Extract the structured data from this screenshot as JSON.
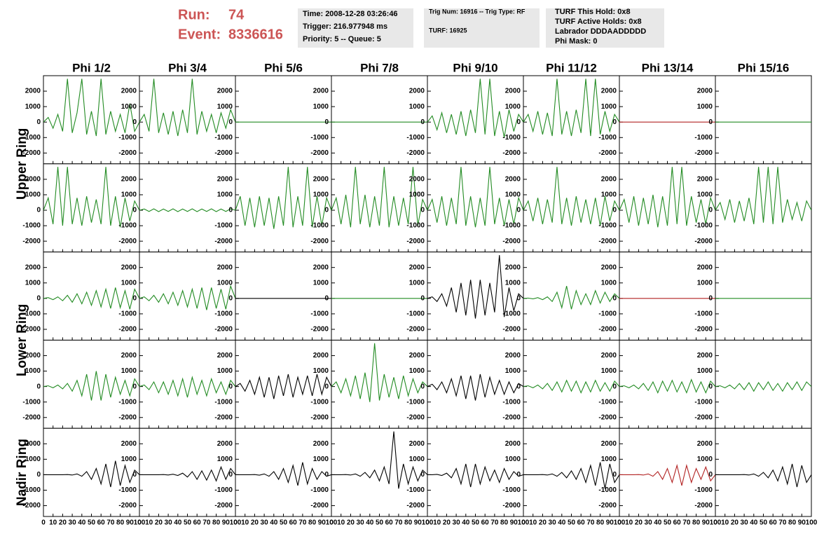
{
  "header": {
    "run_label": "Run:",
    "run": "74",
    "event_label": "Event:",
    "event": "8336616",
    "box1": [
      "Time: 2008-12-28 03:26:46",
      "Trigger: 216.977948 ms",
      "Priority: 5 -- Queue: 5"
    ],
    "box2": [
      "Trig Num: 16916 -- Trig Type: RF",
      "TURF: 16925"
    ],
    "box3": [
      "TURF This Hold: 0x8",
      "TURF Active Holds: 0x8",
      "Labrador DDDAADDDDD",
      "Phi Mask: 0"
    ],
    "box3_colors": [
      "#000000",
      "#000000",
      "#ff00ff",
      "#000000"
    ]
  },
  "chart_data": {
    "type": "line",
    "columns": [
      "Phi 1/2",
      "Phi 3/4",
      "Phi 5/6",
      "Phi 7/8",
      "Phi 9/10",
      "Phi 11/12",
      "Phi 13/14",
      "Phi 15/16"
    ],
    "rings": [
      "Upper Ring",
      "Lower Ring",
      "Nadir Ring"
    ],
    "xlim": [
      0,
      100
    ],
    "ylim": [
      -2700,
      3000
    ],
    "xticks": [
      0,
      10,
      20,
      30,
      40,
      50,
      60,
      70,
      80,
      90,
      100
    ],
    "yticks": [
      -2000,
      -1000,
      0,
      1000,
      2000
    ],
    "x": [
      0,
      5,
      10,
      15,
      20,
      25,
      30,
      35,
      40,
      45,
      50,
      55,
      60,
      65,
      70,
      75,
      80,
      85,
      90,
      95,
      100
    ],
    "panels": [
      [
        {
          "color": "#228b22",
          "values": [
            0,
            300,
            -400,
            500,
            -600,
            2800,
            -700,
            600,
            2800,
            -800,
            700,
            -900,
            2800,
            -800,
            700,
            -600,
            500,
            -700,
            1200,
            -600,
            0
          ]
        },
        {
          "color": "#228b22",
          "values": [
            0,
            500,
            -600,
            2800,
            -700,
            600,
            -800,
            700,
            -900,
            800,
            -700,
            2800,
            -800,
            700,
            -600,
            500,
            -700,
            600,
            -400,
            800,
            0
          ]
        },
        {
          "color": "#228b22",
          "values": [
            0,
            0,
            0,
            0,
            0,
            0,
            0,
            0,
            0,
            0,
            0,
            0,
            0,
            0,
            0,
            0,
            0,
            0,
            0,
            0,
            0
          ]
        },
        {
          "color": "#228b22",
          "values": [
            0,
            0,
            0,
            0,
            0,
            0,
            0,
            0,
            0,
            0,
            0,
            0,
            0,
            0,
            0,
            0,
            0,
            0,
            0,
            0,
            0
          ]
        },
        {
          "color": "#228b22",
          "values": [
            0,
            400,
            -500,
            600,
            -700,
            500,
            -800,
            700,
            -900,
            800,
            -700,
            2800,
            -800,
            2800,
            -900,
            700,
            -1000,
            800,
            -600,
            500,
            0
          ]
        },
        {
          "color": "#228b22",
          "values": [
            0,
            500,
            -600,
            700,
            -800,
            600,
            -900,
            2800,
            -800,
            700,
            -900,
            800,
            -700,
            2800,
            -900,
            2800,
            -800,
            700,
            -600,
            500,
            0
          ]
        },
        {
          "color": "#b22222",
          "values": [
            0,
            0,
            0,
            0,
            0,
            0,
            0,
            0,
            0,
            0,
            0,
            0,
            0,
            0,
            0,
            0,
            0,
            0,
            0,
            0,
            0
          ]
        },
        {
          "color": "#228b22",
          "values": [
            0,
            0,
            0,
            0,
            0,
            0,
            0,
            0,
            0,
            0,
            0,
            0,
            0,
            0,
            0,
            0,
            0,
            0,
            0,
            0,
            0
          ]
        }
      ],
      [
        {
          "color": "#228b22",
          "values": [
            0,
            800,
            -900,
            2800,
            -1000,
            2800,
            -900,
            800,
            -1000,
            900,
            -800,
            700,
            -900,
            2800,
            -1000,
            900,
            -1100,
            800,
            -700,
            600,
            0
          ]
        },
        {
          "color": "#228b22",
          "values": [
            0,
            80,
            -80,
            90,
            -90,
            80,
            -80,
            90,
            -90,
            80,
            -80,
            90,
            -90,
            80,
            -80,
            90,
            -90,
            80,
            -80,
            90,
            0
          ]
        },
        {
          "color": "#228b22",
          "values": [
            0,
            900,
            -1000,
            800,
            -1100,
            900,
            -1000,
            800,
            -1200,
            900,
            -1000,
            2800,
            -1100,
            900,
            -1000,
            2800,
            -1100,
            900,
            -1000,
            800,
            0
          ]
        },
        {
          "color": "#228b22",
          "values": [
            0,
            800,
            -900,
            1000,
            -1100,
            2800,
            -900,
            1000,
            -1100,
            900,
            -1000,
            2800,
            -1100,
            900,
            -1000,
            800,
            -900,
            2800,
            -1000,
            700,
            0
          ]
        },
        {
          "color": "#228b22",
          "values": [
            0,
            700,
            -800,
            900,
            -1000,
            800,
            -900,
            2800,
            -1000,
            900,
            -1100,
            800,
            -1000,
            2800,
            -900,
            800,
            -1000,
            700,
            -900,
            800,
            0
          ]
        },
        {
          "color": "#228b22",
          "values": [
            0,
            600,
            -700,
            800,
            -900,
            700,
            -800,
            2800,
            -900,
            800,
            -1000,
            900,
            -800,
            700,
            -900,
            800,
            -1000,
            900,
            -700,
            600,
            0
          ]
        },
        {
          "color": "#228b22",
          "values": [
            0,
            700,
            -800,
            900,
            -1000,
            800,
            -900,
            1000,
            -1100,
            900,
            -1000,
            2800,
            -900,
            2800,
            -1000,
            900,
            -800,
            700,
            -900,
            800,
            0
          ]
        },
        {
          "color": "#228b22",
          "values": [
            0,
            500,
            -600,
            700,
            -800,
            600,
            -700,
            800,
            -900,
            2800,
            -800,
            2800,
            -900,
            2800,
            -800,
            700,
            -600,
            500,
            -700,
            600,
            0
          ]
        }
      ],
      [
        {
          "color": "#228b22",
          "values": [
            0,
            50,
            -80,
            100,
            -150,
            200,
            -250,
            300,
            -350,
            400,
            -450,
            500,
            -550,
            600,
            -650,
            700,
            -600,
            500,
            -700,
            600,
            0
          ]
        },
        {
          "color": "#228b22",
          "values": [
            0,
            100,
            -150,
            200,
            -250,
            300,
            -350,
            400,
            -450,
            500,
            -550,
            600,
            -650,
            700,
            -750,
            700,
            -650,
            600,
            -700,
            800,
            0
          ]
        },
        {
          "color": "#000000",
          "values": [
            0,
            0,
            0,
            0,
            0,
            0,
            0,
            0,
            0,
            0,
            0,
            0,
            0,
            0,
            0,
            0,
            0,
            0,
            0,
            0,
            0
          ]
        },
        {
          "color": "#228b22",
          "values": [
            0,
            0,
            0,
            0,
            0,
            0,
            0,
            0,
            0,
            0,
            0,
            0,
            0,
            0,
            0,
            0,
            0,
            0,
            0,
            0,
            0
          ]
        },
        {
          "color": "#000000",
          "values": [
            0,
            100,
            -200,
            300,
            -500,
            700,
            -900,
            1000,
            -1100,
            1200,
            -1300,
            1200,
            -1100,
            1000,
            -900,
            2800,
            -1200,
            700,
            -800,
            300,
            0
          ]
        },
        {
          "color": "#228b22",
          "values": [
            0,
            20,
            -30,
            50,
            -80,
            100,
            -200,
            400,
            -600,
            800,
            -700,
            500,
            -400,
            300,
            -400,
            500,
            -300,
            400,
            -200,
            300,
            0
          ]
        },
        {
          "color": "#b22222",
          "values": [
            0,
            0,
            0,
            0,
            0,
            0,
            0,
            0,
            0,
            0,
            0,
            0,
            0,
            0,
            0,
            0,
            0,
            0,
            0,
            0,
            0
          ]
        },
        {
          "color": "#228b22",
          "values": [
            0,
            0,
            0,
            0,
            0,
            0,
            0,
            0,
            0,
            0,
            0,
            0,
            0,
            0,
            0,
            0,
            0,
            0,
            0,
            0,
            0
          ]
        }
      ],
      [
        {
          "color": "#228b22",
          "values": [
            0,
            50,
            -80,
            100,
            -150,
            200,
            -300,
            400,
            -600,
            800,
            -900,
            1000,
            -900,
            800,
            -700,
            600,
            -500,
            400,
            -600,
            500,
            0
          ]
        },
        {
          "color": "#228b22",
          "values": [
            0,
            100,
            -200,
            300,
            -400,
            300,
            -500,
            400,
            -600,
            500,
            -700,
            600,
            -500,
            400,
            -600,
            500,
            -400,
            300,
            -500,
            400,
            0
          ]
        },
        {
          "color": "#000000",
          "values": [
            0,
            200,
            -300,
            400,
            -500,
            600,
            -700,
            600,
            -800,
            700,
            -600,
            800,
            -700,
            600,
            -500,
            700,
            -600,
            800,
            -500,
            600,
            0
          ]
        },
        {
          "color": "#228b22",
          "values": [
            0,
            300,
            -400,
            500,
            -600,
            700,
            -800,
            900,
            -1000,
            2800,
            -900,
            800,
            -700,
            600,
            -800,
            700,
            -600,
            500,
            -400,
            300,
            0
          ]
        },
        {
          "color": "#000000",
          "values": [
            0,
            150,
            -200,
            300,
            -400,
            500,
            -600,
            700,
            -800,
            700,
            -900,
            800,
            -700,
            600,
            -500,
            400,
            -500,
            300,
            -400,
            200,
            0
          ]
        },
        {
          "color": "#228b22",
          "values": [
            0,
            50,
            -80,
            100,
            -150,
            200,
            -250,
            300,
            -350,
            400,
            -300,
            350,
            -400,
            300,
            -350,
            400,
            -300,
            250,
            -300,
            350,
            0
          ]
        },
        {
          "color": "#228b22",
          "values": [
            0,
            50,
            -80,
            100,
            -150,
            200,
            -250,
            300,
            -400,
            350,
            -300,
            400,
            -350,
            300,
            -400,
            450,
            -350,
            300,
            -400,
            350,
            0
          ]
        },
        {
          "color": "#228b22",
          "values": [
            0,
            50,
            -80,
            100,
            -150,
            200,
            -200,
            250,
            -300,
            250,
            -200,
            300,
            -250,
            200,
            -300,
            250,
            -200,
            300,
            -250,
            300,
            0
          ]
        }
      ],
      [
        {
          "color": "#000000",
          "values": [
            0,
            0,
            0,
            0,
            0,
            10,
            -20,
            50,
            -100,
            200,
            -300,
            400,
            -600,
            700,
            -800,
            900,
            -700,
            600,
            -500,
            300,
            0
          ]
        },
        {
          "color": "#000000",
          "values": [
            0,
            0,
            0,
            0,
            0,
            10,
            -20,
            30,
            -50,
            100,
            -150,
            200,
            -300,
            250,
            -350,
            300,
            -400,
            500,
            -300,
            400,
            0
          ]
        },
        {
          "color": "#000000",
          "values": [
            0,
            0,
            0,
            0,
            10,
            -30,
            50,
            -100,
            200,
            -300,
            400,
            -500,
            600,
            -700,
            800,
            -600,
            400,
            -300,
            200,
            -100,
            0
          ]
        },
        {
          "color": "#000000",
          "values": [
            0,
            0,
            0,
            10,
            -20,
            50,
            -100,
            150,
            -200,
            300,
            -400,
            500,
            -600,
            2800,
            -900,
            700,
            -600,
            500,
            -400,
            300,
            0
          ]
        },
        {
          "color": "#000000",
          "values": [
            0,
            0,
            20,
            -50,
            100,
            -200,
            400,
            -600,
            700,
            -800,
            700,
            -600,
            500,
            -400,
            300,
            -500,
            400,
            -300,
            200,
            -100,
            0
          ]
        },
        {
          "color": "#000000",
          "values": [
            0,
            0,
            0,
            0,
            10,
            -20,
            50,
            -100,
            150,
            -200,
            250,
            -300,
            400,
            -500,
            600,
            -700,
            800,
            -900,
            700,
            -500,
            0
          ]
        },
        {
          "color": "#b22222",
          "values": [
            0,
            0,
            0,
            0,
            10,
            -20,
            50,
            -100,
            200,
            -300,
            400,
            -500,
            600,
            -700,
            600,
            -500,
            400,
            -300,
            500,
            -400,
            0
          ]
        },
        {
          "color": "#000000",
          "values": [
            0,
            0,
            0,
            0,
            0,
            0,
            10,
            -20,
            50,
            -100,
            150,
            -200,
            300,
            -400,
            500,
            -600,
            700,
            -800,
            600,
            -500,
            0
          ]
        }
      ]
    ]
  }
}
